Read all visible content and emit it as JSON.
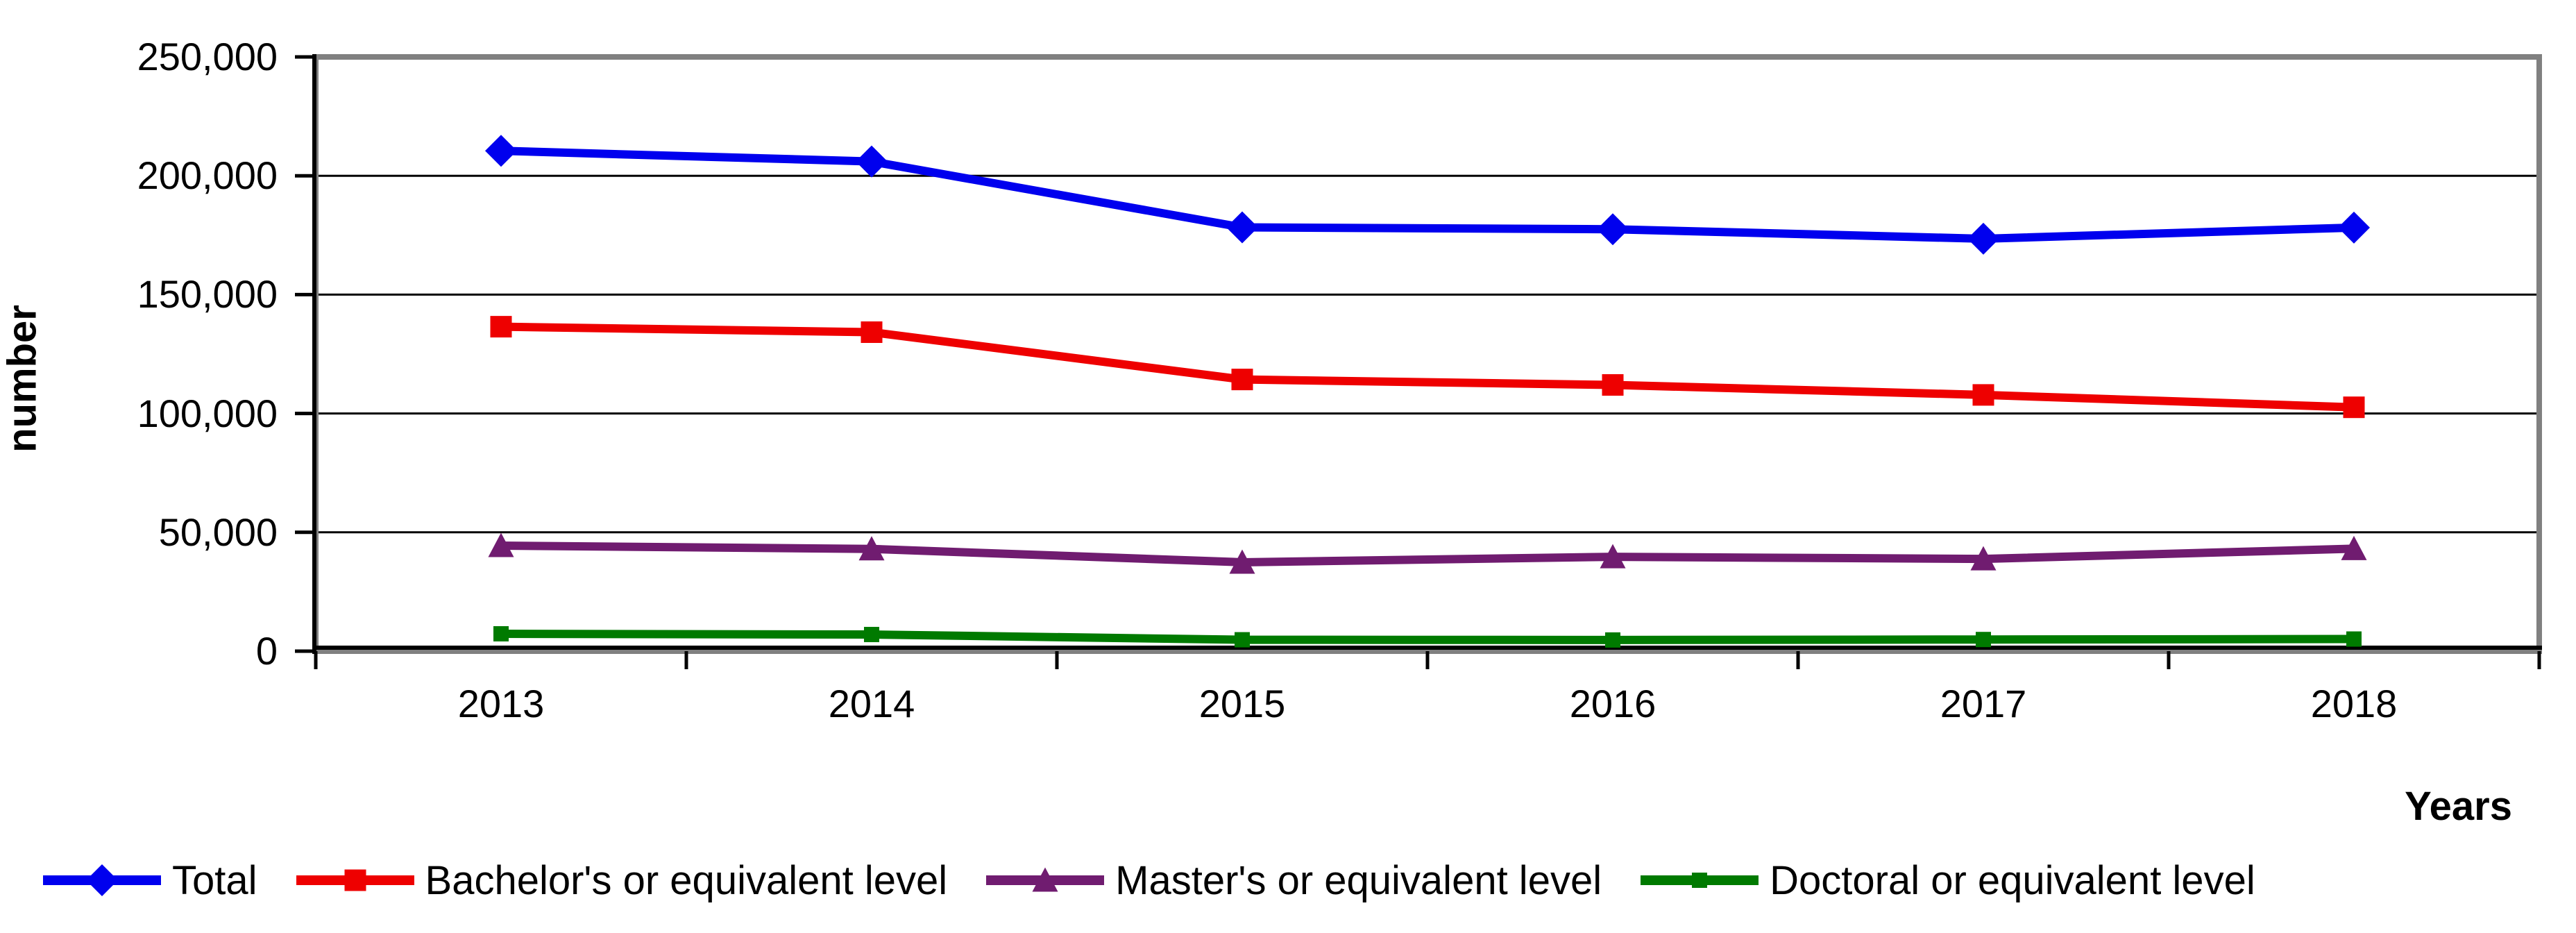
{
  "chart_data": {
    "type": "line",
    "title": "",
    "ylabel": "number",
    "xlabel": "Years",
    "categories": [
      "2013",
      "2014",
      "2015",
      "2016",
      "2017",
      "2018"
    ],
    "ylim": [
      0,
      250000
    ],
    "ytick_step": 50000,
    "ytick_labels": [
      "0",
      "50,000",
      "100,000",
      "150,000",
      "200,000",
      "250,000"
    ],
    "grid": true,
    "legend_position": "bottom",
    "axis_color": "#000000",
    "plot_border_color": "#808080",
    "gridline_color": "#000000",
    "series": [
      {
        "name": "Total",
        "color": "#0000ee",
        "marker": "diamond",
        "values": [
          210500,
          206000,
          178300,
          177500,
          173500,
          178200
        ]
      },
      {
        "name": "Bachelor's or equivalent level",
        "color": "#ee0000",
        "marker": "square",
        "values": [
          136500,
          134200,
          114300,
          112000,
          107800,
          102600
        ]
      },
      {
        "name": "Master's or equivalent level",
        "color": "#701c70",
        "marker": "triangle",
        "values": [
          44400,
          43000,
          37400,
          39700,
          38800,
          43100
        ]
      },
      {
        "name": "Doctoral or equivalent level",
        "color": "#007a00",
        "marker": "square-small",
        "values": [
          7300,
          7000,
          4800,
          4700,
          4900,
          5100
        ]
      }
    ]
  }
}
